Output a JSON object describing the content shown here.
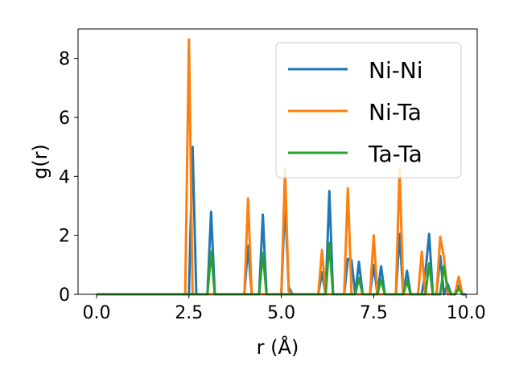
{
  "chart_data": {
    "type": "line",
    "title": "",
    "xlabel": "r (Å)",
    "ylabel": "g(r)",
    "xlim": [
      -0.5,
      10.3
    ],
    "ylim": [
      0,
      9.0
    ],
    "xticks": [
      0.0,
      2.5,
      5.0,
      7.5,
      10.0
    ],
    "xtick_labels": [
      "0.0",
      "2.5",
      "5.0",
      "7.5",
      "10.0"
    ],
    "yticks": [
      0,
      2,
      4,
      6,
      8
    ],
    "ytick_labels": [
      "0",
      "2",
      "4",
      "6",
      "8"
    ],
    "grid": false,
    "legend_position": "top-right",
    "series": [
      {
        "name": "Ni-Ni",
        "color": "#1f77b4",
        "x": [
          0.0,
          2.5,
          2.6,
          2.7,
          2.8,
          2.9,
          3.0,
          3.1,
          3.2,
          4.0,
          4.1,
          4.2,
          4.4,
          4.5,
          4.6,
          5.0,
          5.1,
          5.2,
          5.3,
          6.0,
          6.1,
          6.2,
          6.3,
          6.4,
          6.7,
          6.8,
          6.9,
          7.0,
          7.1,
          7.2,
          7.4,
          7.5,
          7.6,
          7.7,
          7.8,
          8.0,
          8.1,
          8.2,
          8.3,
          8.4,
          8.5,
          8.6,
          8.8,
          8.9,
          9.0,
          9.1,
          9.2,
          9.3,
          9.4,
          9.5,
          9.6,
          9.7,
          9.8,
          9.9,
          10.0
        ],
        "y": [
          0,
          0,
          5.0,
          0,
          0,
          0,
          0,
          2.8,
          0,
          0,
          1.65,
          0,
          0,
          2.7,
          0,
          0,
          3.2,
          0.25,
          0,
          0,
          0.75,
          0,
          3.5,
          0,
          0,
          1.2,
          1.15,
          0,
          1.1,
          0,
          0,
          1.0,
          0,
          0.95,
          0,
          0,
          0,
          2.05,
          0,
          0.8,
          0,
          0,
          0,
          0.75,
          2.05,
          0,
          0,
          1.3,
          0,
          0.35,
          0,
          0,
          0.3,
          0,
          0
        ]
      },
      {
        "name": "Ni-Ta",
        "color": "#ff7f0e",
        "x": [
          0.0,
          2.4,
          2.5,
          2.6,
          3.9,
          4.0,
          4.1,
          4.2,
          4.9,
          5.0,
          5.1,
          5.2,
          5.3,
          5.9,
          6.0,
          6.1,
          6.2,
          6.6,
          6.7,
          6.8,
          6.9,
          7.0,
          7.1,
          7.4,
          7.5,
          7.6,
          7.7,
          8.0,
          8.1,
          8.2,
          8.3,
          8.4,
          8.6,
          8.7,
          8.8,
          8.9,
          9.1,
          9.2,
          9.3,
          9.4,
          9.5,
          9.6,
          9.7,
          9.8,
          9.9
        ],
        "y": [
          0,
          0,
          8.65,
          0,
          0,
          0,
          3.25,
          0,
          0,
          0,
          4.25,
          0.1,
          0,
          0,
          0,
          1.5,
          0,
          0,
          0,
          3.6,
          0,
          0,
          0,
          0,
          2.0,
          0,
          0,
          0,
          0,
          4.25,
          0,
          0,
          0,
          0,
          1.45,
          0,
          0,
          0,
          1.95,
          1.25,
          0,
          0,
          0,
          0.6,
          0
        ]
      },
      {
        "name": "Ta-Ta",
        "color": "#2ca02c",
        "x": [
          0.0,
          2.9,
          3.0,
          3.1,
          3.2,
          3.3,
          4.3,
          4.4,
          4.5,
          4.6,
          6.1,
          6.2,
          6.3,
          6.4,
          6.5,
          6.9,
          7.0,
          7.1,
          7.2,
          7.5,
          7.6,
          7.7,
          7.8,
          8.3,
          8.4,
          8.5,
          8.8,
          8.9,
          9.0,
          9.1,
          9.2,
          9.3,
          9.4,
          9.5,
          9.6,
          9.7,
          9.8,
          9.9
        ],
        "y": [
          0,
          0,
          0,
          1.45,
          0,
          0,
          0,
          0,
          1.4,
          0,
          0,
          0,
          1.75,
          0,
          0,
          0,
          0,
          0.55,
          0,
          0,
          0,
          0.5,
          0,
          0,
          0.45,
          0,
          0,
          0,
          1.05,
          0,
          0,
          0,
          0.95,
          0.2,
          0,
          0,
          0.2,
          0
        ]
      }
    ]
  }
}
